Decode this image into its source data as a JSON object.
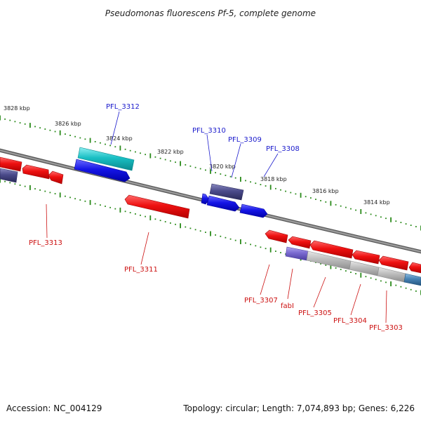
{
  "title": "Pseudomonas fluorescens Pf-5, complete genome",
  "footer": {
    "accession": "Accession: NC_004129",
    "topology": "Topology: circular; Length: 7,074,893 bp; Genes: 6,226"
  },
  "scale_labels": [
    "3828 kbp",
    "3826 kbp",
    "3824 kbp",
    "3822 kbp",
    "3820 kbp",
    "3818 kbp",
    "3816 kbp",
    "3814 kbp"
  ],
  "colors": {
    "backbone": "#7a7a7a",
    "ticks": "#2a8a1a",
    "red": "#ee1111",
    "blue": "#1515e6",
    "cyan": "#19bfc4",
    "navy": "#4a4a8a",
    "violet": "#7a6ad0",
    "gray": "#bcbcbc",
    "steel": "#4682b4",
    "leader": "#cc1111",
    "leader_blue": "#1a1acc"
  },
  "upper_genes": [
    {
      "name": "PFL_3312",
      "color": "cyan"
    },
    {
      "name": "PFL_3310",
      "color": "navy"
    },
    {
      "name": "PFL_3309",
      "color": "blue"
    },
    {
      "name": "PFL_3308",
      "color": "blue"
    }
  ],
  "lower_genes": [
    {
      "name": "PFL_3313",
      "color": "red"
    },
    {
      "name": "PFL_3311",
      "color": "red"
    },
    {
      "name": "PFL_3307",
      "color": "red"
    },
    {
      "name": "fabI",
      "color": "violet"
    },
    {
      "name": "PFL_3305",
      "color": "gray"
    },
    {
      "name": "PFL_3304",
      "color": "gray"
    },
    {
      "name": "PFL_3303",
      "color": "steel"
    }
  ]
}
